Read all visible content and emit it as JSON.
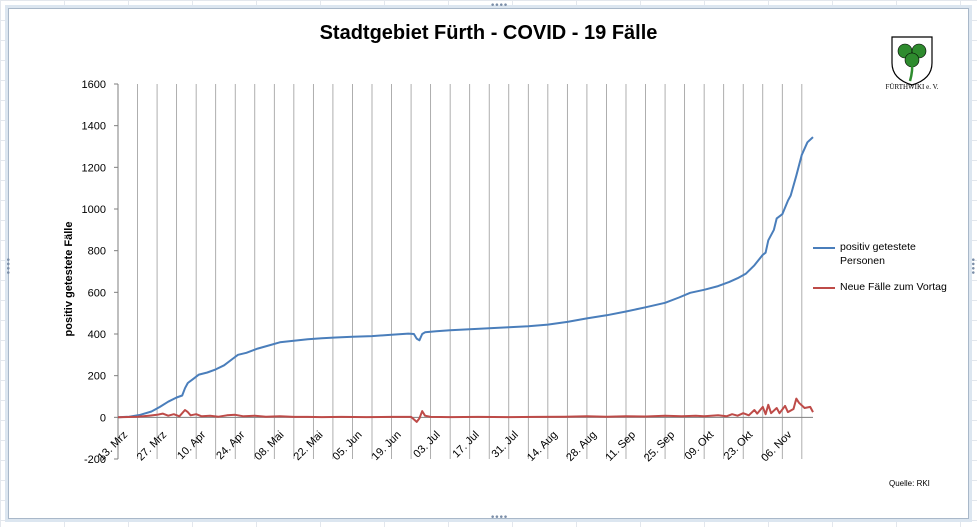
{
  "window": {
    "sheet_gridlines": true
  },
  "chart_data": {
    "type": "line",
    "title": "Stadtgebiet Fürth - COVID - 19 Fälle",
    "ylabel": "positiv getestete  Fälle",
    "xlabel": "",
    "ylim": [
      -200,
      1600
    ],
    "yticks": [
      -200,
      0,
      200,
      400,
      600,
      800,
      1000,
      1200,
      1400,
      1600
    ],
    "x_start": "13. Mrz",
    "x_end": "17. Nov",
    "x_unit": "date (2020)",
    "xtick_labels": [
      "13. Mrz",
      "27. Mrz",
      "10. Apr",
      "24. Apr",
      "08. Mai",
      "22. Mai",
      "05. Jun",
      "19. Jun",
      "03. Jul",
      "17. Jul",
      "31. Jul",
      "14. Aug",
      "28. Aug",
      "11. Sep",
      "25. Sep",
      "09. Okt",
      "23. Okt",
      "06. Nov"
    ],
    "xtick_rotation": -45,
    "grid": {
      "vertical": true,
      "horizontal": false,
      "vertical_every_days": 7
    },
    "legend": "right",
    "series": [
      {
        "name": "positiv getestete Personen",
        "color": "#4a7ebb",
        "points": [
          [
            "13. Mrz",
            0
          ],
          [
            "17. Mrz",
            3
          ],
          [
            "21. Mrz",
            12
          ],
          [
            "25. Mrz",
            28
          ],
          [
            "28. Mrz",
            50
          ],
          [
            "31. Mrz",
            75
          ],
          [
            "03. Apr",
            95
          ],
          [
            "05. Apr",
            105
          ],
          [
            "06. Apr",
            140
          ],
          [
            "07. Apr",
            165
          ],
          [
            "09. Apr",
            185
          ],
          [
            "11. Apr",
            205
          ],
          [
            "14. Apr",
            215
          ],
          [
            "17. Apr",
            230
          ],
          [
            "20. Apr",
            250
          ],
          [
            "23. Apr",
            280
          ],
          [
            "25. Apr",
            300
          ],
          [
            "28. Apr",
            310
          ],
          [
            "02. Mai",
            330
          ],
          [
            "06. Mai",
            345
          ],
          [
            "10. Mai",
            360
          ],
          [
            "15. Mai",
            368
          ],
          [
            "20. Mai",
            375
          ],
          [
            "25. Mai",
            380
          ],
          [
            "30. Mai",
            383
          ],
          [
            "05. Jun",
            387
          ],
          [
            "12. Jun",
            390
          ],
          [
            "19. Jun",
            396
          ],
          [
            "25. Jun",
            402
          ],
          [
            "27. Jun",
            400
          ],
          [
            "28. Jun",
            378
          ],
          [
            "29. Jun",
            370
          ],
          [
            "30. Jun",
            400
          ],
          [
            "01. Jul",
            408
          ],
          [
            "05. Jul",
            413
          ],
          [
            "10. Jul",
            418
          ],
          [
            "17. Jul",
            423
          ],
          [
            "24. Jul",
            428
          ],
          [
            "31. Jul",
            432
          ],
          [
            "07. Aug",
            437
          ],
          [
            "14. Aug",
            445
          ],
          [
            "21. Aug",
            458
          ],
          [
            "28. Aug",
            475
          ],
          [
            "04. Sep",
            490
          ],
          [
            "11. Sep",
            508
          ],
          [
            "18. Sep",
            528
          ],
          [
            "25. Sep",
            550
          ],
          [
            "30. Sep",
            575
          ],
          [
            "04. Okt",
            598
          ],
          [
            "09. Okt",
            612
          ],
          [
            "14. Okt",
            630
          ],
          [
            "18. Okt",
            650
          ],
          [
            "21. Okt",
            668
          ],
          [
            "24. Okt",
            690
          ],
          [
            "27. Okt",
            730
          ],
          [
            "30. Okt",
            780
          ],
          [
            "31. Okt",
            790
          ],
          [
            "01. Nov",
            850
          ],
          [
            "03. Nov",
            900
          ],
          [
            "04. Nov",
            955
          ],
          [
            "06. Nov",
            975
          ],
          [
            "08. Nov",
            1040
          ],
          [
            "09. Nov",
            1065
          ],
          [
            "11. Nov",
            1160
          ],
          [
            "13. Nov",
            1260
          ],
          [
            "15. Nov",
            1320
          ],
          [
            "17. Nov",
            1345
          ]
        ]
      },
      {
        "name": "Neue Fälle zum Vortag",
        "color": "#be4b48",
        "points": [
          [
            "13. Mrz",
            0
          ],
          [
            "20. Mrz",
            3
          ],
          [
            "24. Mrz",
            8
          ],
          [
            "27. Mrz",
            12
          ],
          [
            "29. Mrz",
            18
          ],
          [
            "31. Mrz",
            8
          ],
          [
            "02. Apr",
            15
          ],
          [
            "04. Apr",
            5
          ],
          [
            "06. Apr",
            35
          ],
          [
            "07. Apr",
            25
          ],
          [
            "08. Apr",
            10
          ],
          [
            "10. Apr",
            15
          ],
          [
            "12. Apr",
            5
          ],
          [
            "15. Apr",
            8
          ],
          [
            "18. Apr",
            3
          ],
          [
            "21. Apr",
            10
          ],
          [
            "24. Apr",
            12
          ],
          [
            "27. Apr",
            5
          ],
          [
            "01. Mai",
            8
          ],
          [
            "05. Mai",
            3
          ],
          [
            "10. Mai",
            5
          ],
          [
            "15. Mai",
            2
          ],
          [
            "20. Mai",
            2
          ],
          [
            "25. Mai",
            1
          ],
          [
            "01. Jun",
            2
          ],
          [
            "10. Jun",
            1
          ],
          [
            "19. Jun",
            2
          ],
          [
            "26. Jun",
            2
          ],
          [
            "28. Jun",
            -22
          ],
          [
            "29. Jun",
            -5
          ],
          [
            "30. Jun",
            30
          ],
          [
            "01. Jul",
            8
          ],
          [
            "03. Jul",
            2
          ],
          [
            "10. Jul",
            1
          ],
          [
            "20. Jul",
            2
          ],
          [
            "31. Jul",
            1
          ],
          [
            "10. Aug",
            2
          ],
          [
            "20. Aug",
            3
          ],
          [
            "28. Aug",
            5
          ],
          [
            "04. Sep",
            3
          ],
          [
            "11. Sep",
            5
          ],
          [
            "18. Sep",
            4
          ],
          [
            "25. Sep",
            8
          ],
          [
            "01. Okt",
            5
          ],
          [
            "06. Okt",
            8
          ],
          [
            "09. Okt",
            5
          ],
          [
            "14. Okt",
            10
          ],
          [
            "17. Okt",
            5
          ],
          [
            "19. Okt",
            15
          ],
          [
            "21. Okt",
            8
          ],
          [
            "23. Okt",
            20
          ],
          [
            "25. Okt",
            10
          ],
          [
            "27. Okt",
            35
          ],
          [
            "28. Okt",
            18
          ],
          [
            "30. Okt",
            50
          ],
          [
            "31. Okt",
            15
          ],
          [
            "01. Nov",
            60
          ],
          [
            "02. Nov",
            20
          ],
          [
            "04. Nov",
            45
          ],
          [
            "05. Nov",
            20
          ],
          [
            "07. Nov",
            55
          ],
          [
            "08. Nov",
            25
          ],
          [
            "10. Nov",
            40
          ],
          [
            "11. Nov",
            90
          ],
          [
            "12. Nov",
            70
          ],
          [
            "14. Nov",
            45
          ],
          [
            "16. Nov",
            50
          ],
          [
            "17. Nov",
            25
          ]
        ]
      }
    ]
  },
  "logo": {
    "caption": "FÜRTHWIKI e. V.",
    "icon": "cloverleaf-shield-logo",
    "colors": {
      "shield": "#ffffff",
      "clover": "#2e8b2e",
      "stroke": "#000000"
    }
  },
  "source": "Quelle: RKI"
}
